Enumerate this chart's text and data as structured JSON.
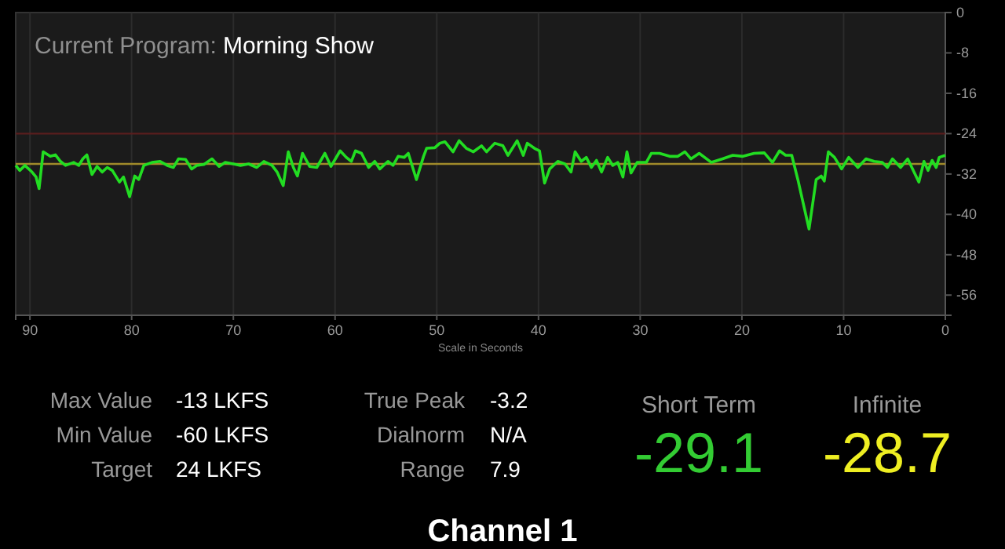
{
  "chart_data": {
    "type": "line",
    "title": "Current Program:",
    "subtitle": "Morning Show",
    "xlabel": "Scale in Seconds",
    "annotations": [
      "Max Value",
      "-13 LKFS",
      "Min Value",
      "-60 LKFS",
      "Target",
      "24 LKFS",
      "True Peak",
      "-3.2",
      "Dialnorm",
      "N/A",
      "Range",
      "7.9",
      "Short Term",
      "-29.1",
      "Infinite",
      "-28.7",
      "Channel 1"
    ],
    "x": [
      91.4,
      91.0,
      90.5,
      89.8,
      89.4,
      89.1,
      88.7,
      88.0,
      87.5,
      87.0,
      86.5,
      85.7,
      85.2,
      84.8,
      84.4,
      83.9,
      83.4,
      82.9,
      82.4,
      81.9,
      81.2,
      80.8,
      80.2,
      79.7,
      79.3,
      78.8,
      78.0,
      77.2,
      76.5,
      75.9,
      75.4,
      74.7,
      74.1,
      73.6,
      72.9,
      72.1,
      71.4,
      70.8,
      70.0,
      69.3,
      68.5,
      67.7,
      67.0,
      66.2,
      65.7,
      65.1,
      64.6,
      64.1,
      63.7,
      63.2,
      62.5,
      61.8,
      61.0,
      60.4,
      59.5,
      58.9,
      58.4,
      58.0,
      57.4,
      56.7,
      56.1,
      55.6,
      54.8,
      54.3,
      53.8,
      53.2,
      52.8,
      52.0,
      51.3,
      51.0,
      50.2,
      49.7,
      49.2,
      48.4,
      47.8,
      47.1,
      46.4,
      45.6,
      45.1,
      44.3,
      43.5,
      43.0,
      42.1,
      41.5,
      41.1,
      40.4,
      39.9,
      39.4,
      38.9,
      38.1,
      37.4,
      36.8,
      36.4,
      35.8,
      35.3,
      34.8,
      34.3,
      33.8,
      33.2,
      32.7,
      32.2,
      31.7,
      31.3,
      30.9,
      30.3,
      29.4,
      28.9,
      28.1,
      27.1,
      26.3,
      25.6,
      25.0,
      24.2,
      23.0,
      21.9,
      20.9,
      19.9,
      18.8,
      17.8,
      17.0,
      16.3,
      15.7,
      15.1,
      14.5,
      13.4,
      12.7,
      12.2,
      11.9,
      11.5,
      10.9,
      10.2,
      9.5,
      8.6,
      7.8,
      7.0,
      6.2,
      5.7,
      5.2,
      4.4,
      3.7,
      2.6,
      2.1,
      1.7,
      1.3,
      0.9,
      0.6,
      0.0
    ],
    "series": [
      {
        "color": "#22dd22",
        "values": [
          -30.3,
          -31.3,
          -30.3,
          -31.6,
          -32.6,
          -34.9,
          -27.6,
          -28.5,
          -28.2,
          -29.5,
          -30.3,
          -29.7,
          -30.3,
          -29.0,
          -28.2,
          -32.1,
          -30.5,
          -31.6,
          -30.7,
          -31.3,
          -33.6,
          -32.6,
          -36.5,
          -32.4,
          -33.1,
          -30.3,
          -29.7,
          -29.5,
          -30.3,
          -30.7,
          -29.0,
          -29.1,
          -31.0,
          -30.3,
          -30.1,
          -29.0,
          -30.5,
          -29.7,
          -30.0,
          -30.3,
          -30.0,
          -30.7,
          -29.5,
          -30.3,
          -31.6,
          -34.3,
          -27.6,
          -30.7,
          -32.4,
          -27.9,
          -30.5,
          -30.7,
          -27.9,
          -30.5,
          -27.4,
          -28.7,
          -29.5,
          -27.4,
          -27.9,
          -30.7,
          -29.5,
          -31.0,
          -29.5,
          -30.3,
          -28.5,
          -28.7,
          -27.9,
          -33.1,
          -28.5,
          -26.9,
          -26.8,
          -25.9,
          -25.6,
          -27.6,
          -25.4,
          -26.9,
          -27.6,
          -26.4,
          -27.6,
          -25.9,
          -26.4,
          -28.3,
          -25.4,
          -28.3,
          -25.9,
          -26.9,
          -27.4,
          -33.8,
          -31.0,
          -29.5,
          -30.0,
          -31.6,
          -27.6,
          -29.5,
          -28.7,
          -30.7,
          -29.3,
          -31.6,
          -28.7,
          -30.3,
          -29.7,
          -32.6,
          -27.6,
          -31.8,
          -29.7,
          -29.7,
          -27.9,
          -27.9,
          -28.5,
          -28.5,
          -27.6,
          -29.0,
          -27.9,
          -29.7,
          -29.0,
          -28.3,
          -28.5,
          -27.9,
          -27.8,
          -29.7,
          -27.4,
          -28.3,
          -28.3,
          -33.1,
          -42.9,
          -33.1,
          -32.4,
          -33.4,
          -27.6,
          -28.7,
          -31.0,
          -28.7,
          -30.7,
          -29.0,
          -29.5,
          -29.7,
          -30.7,
          -29.0,
          -30.7,
          -29.0,
          -33.6,
          -29.5,
          -31.3,
          -29.3,
          -30.7,
          -28.7,
          -28.3
        ]
      }
    ],
    "xlim": [
      91.4,
      0
    ],
    "xticks": [
      90,
      80,
      70,
      60,
      50,
      40,
      30,
      20,
      10,
      0
    ],
    "ylim": [
      -60,
      0
    ],
    "yticks": [
      0,
      -8,
      -16,
      -24,
      -32,
      -40,
      -48,
      -56
    ],
    "ref_lines": [
      {
        "axis": "y",
        "value": -24,
        "color": "#5a1e1e"
      },
      {
        "axis": "y",
        "value": -30,
        "color": "#a08a2a"
      }
    ],
    "grid": "x",
    "marker": "none",
    "line_style": "solid"
  }
}
